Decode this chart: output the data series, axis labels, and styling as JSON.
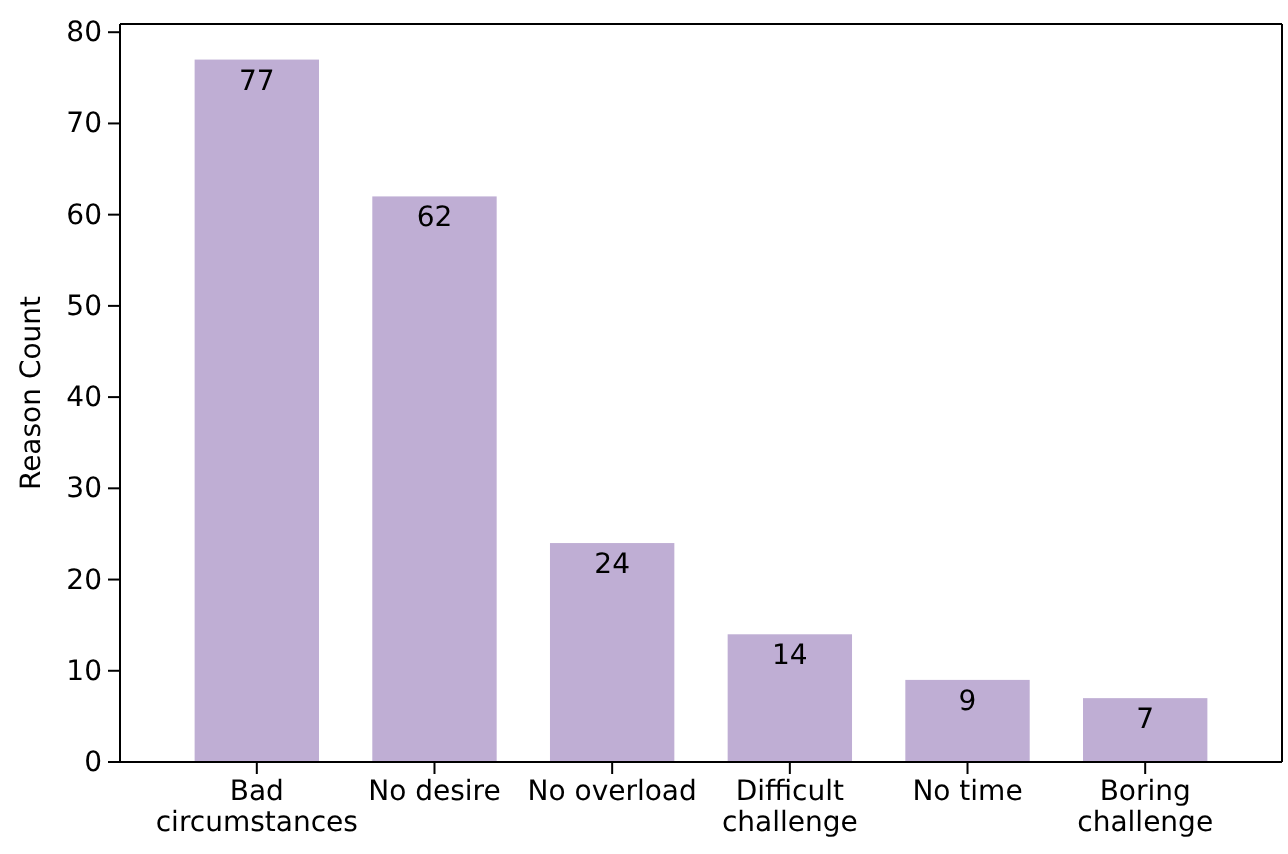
{
  "chart_data": {
    "type": "bar",
    "ylabel": "Reason Count",
    "categories": [
      "Bad circumstances",
      "No desire",
      "No overload",
      "Difficult challenge",
      "No time",
      "Boring challenge"
    ],
    "values": [
      77,
      62,
      24,
      14,
      9,
      7
    ],
    "color": "#bfaed4",
    "ylim": [
      0,
      80.9
    ],
    "yticks": [
      0,
      10,
      20,
      30,
      40,
      50,
      60,
      70,
      80
    ],
    "grid": false,
    "data_labels": true
  }
}
